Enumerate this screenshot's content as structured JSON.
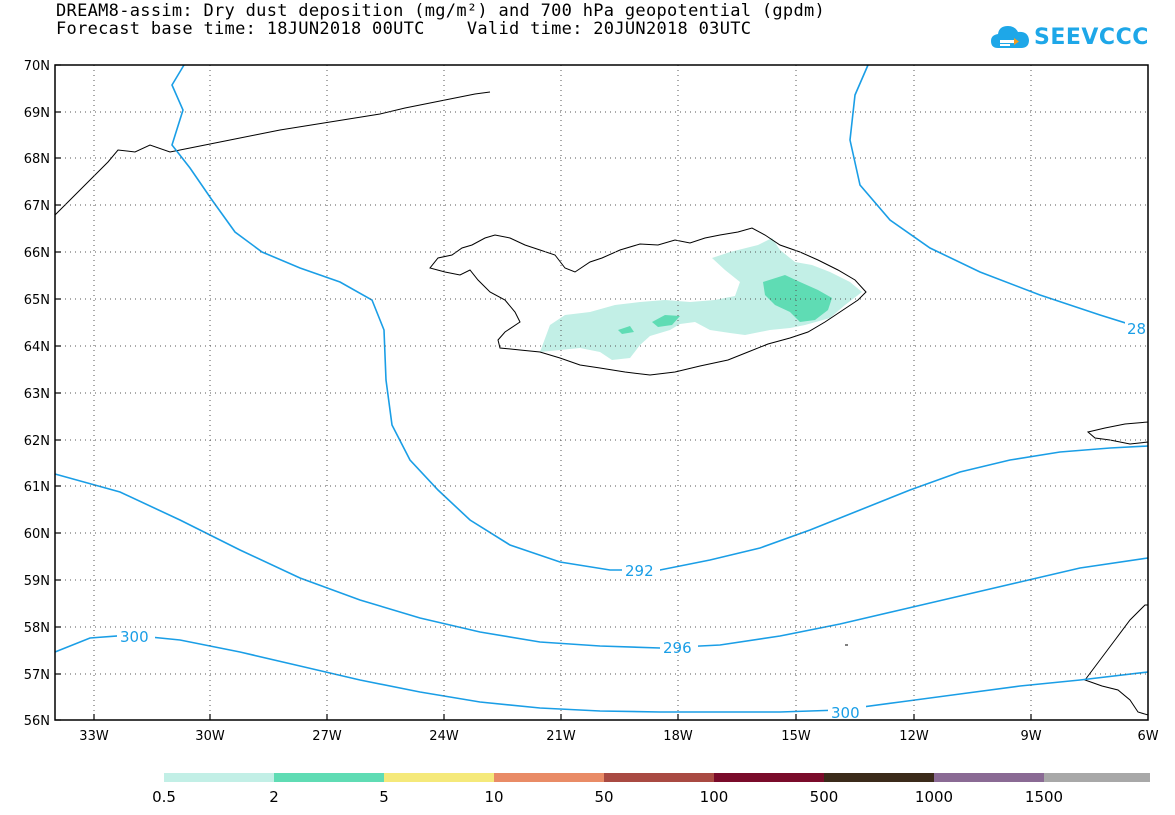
{
  "header": {
    "title_line1": "DREAM8-assim: Dry dust deposition (mg/m²) and 700 hPa geopotential (gpdm)",
    "title_line2": "Forecast base time: 18JUN2018 00UTC    Valid time: 20JUN2018 03UTC"
  },
  "logo": {
    "text": "SEEVCCC",
    "icon": "cloud-logo-icon"
  },
  "map": {
    "lat_labels": [
      "70N",
      "69N",
      "68N",
      "67N",
      "66N",
      "65N",
      "64N",
      "63N",
      "62N",
      "61N",
      "60N",
      "59N",
      "58N",
      "57N",
      "56N"
    ],
    "lon_labels": [
      "33W",
      "30W",
      "27W",
      "24W",
      "21W",
      "18W",
      "15W",
      "12W",
      "9W",
      "6W"
    ],
    "contour_labels": [
      "292",
      "296",
      "300",
      "300",
      "28"
    ],
    "contour_color": "#1a9ee6"
  },
  "legend": {
    "labels": [
      "0.5",
      "2",
      "5",
      "10",
      "50",
      "100",
      "500",
      "1000",
      "1500"
    ],
    "colors": [
      "#c2efe6",
      "#5fdcb4",
      "#f5e97a",
      "#e98b66",
      "#a94a42",
      "#7a0b2a",
      "#3b2a1a",
      "#8a6a94",
      "#a8a8a8"
    ]
  }
}
